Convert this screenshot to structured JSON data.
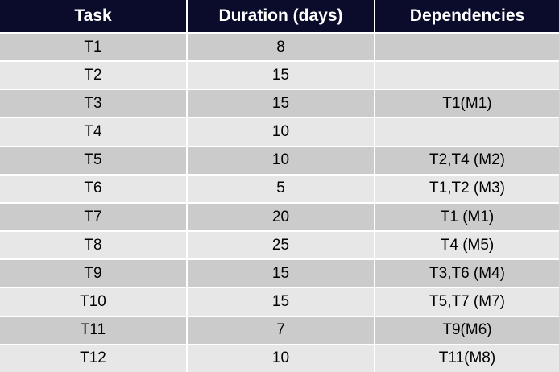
{
  "table": {
    "headers": {
      "task": "Task",
      "duration": "Duration (days)",
      "dependencies": "Dependencies"
    },
    "rows": [
      {
        "task": "T1",
        "duration": "8",
        "dependencies": ""
      },
      {
        "task": "T2",
        "duration": "15",
        "dependencies": ""
      },
      {
        "task": "T3",
        "duration": "15",
        "dependencies": "T1(M1)"
      },
      {
        "task": "T4",
        "duration": "10",
        "dependencies": ""
      },
      {
        "task": "T5",
        "duration": "10",
        "dependencies": "T2,T4 (M2)"
      },
      {
        "task": "T6",
        "duration": "5",
        "dependencies": "T1,T2 (M3)"
      },
      {
        "task": "T7",
        "duration": "20",
        "dependencies": "T1 (M1)"
      },
      {
        "task": "T8",
        "duration": "25",
        "dependencies": "T4 (M5)"
      },
      {
        "task": "T9",
        "duration": "15",
        "dependencies": "T3,T6 (M4)"
      },
      {
        "task": "T10",
        "duration": "15",
        "dependencies": "T5,T7 (M7)"
      },
      {
        "task": "T11",
        "duration": "7",
        "dependencies": "T9(M6)"
      },
      {
        "task": "T12",
        "duration": "10",
        "dependencies": "T11(M8)"
      }
    ]
  },
  "colors": {
    "header_background": "#0b0b2b",
    "header_text": "#ffffff",
    "row_odd": "#cbcbcb",
    "row_even": "#e7e7e7"
  }
}
